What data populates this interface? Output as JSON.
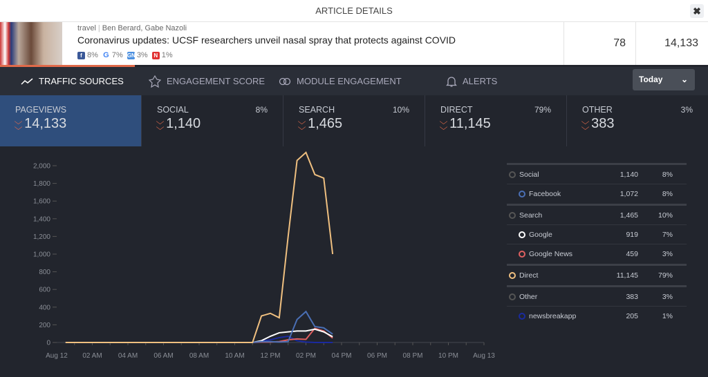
{
  "window": {
    "title": "ARTICLE DETAILS",
    "close_label": "✖"
  },
  "article": {
    "section": "travel",
    "authors": "Ben Berard, Gabe Nazoli",
    "headline": "Coronavirus updates: UCSF researchers unveil nasal spray that protects against COVID",
    "shares": [
      {
        "icon": "facebook-icon",
        "label": "8%",
        "color": "#3b5998",
        "glyph": "f"
      },
      {
        "icon": "google-icon",
        "label": "7%",
        "color": "#4285f4",
        "glyph": "G"
      },
      {
        "icon": "google-news-icon",
        "label": "3%",
        "color": "#4a8fe0",
        "glyph": "GN"
      },
      {
        "icon": "newsbreak-icon",
        "label": "1%",
        "color": "#e03030",
        "glyph": "N"
      }
    ],
    "col1": "78",
    "col2": "14,133",
    "progress_percent": 19
  },
  "tabs": [
    {
      "label": "TRAFFIC SOURCES",
      "icon": "trend-icon",
      "active": true
    },
    {
      "label": "ENGAGEMENT SCORE",
      "icon": "star-badge-icon"
    },
    {
      "label": "MODULE ENGAGEMENT",
      "icon": "rings-icon"
    },
    {
      "label": "ALERTS",
      "icon": "bell-icon"
    }
  ],
  "date_select": {
    "value": "Today"
  },
  "stats": [
    {
      "label": "PAGEVIEWS",
      "value": "14,133",
      "pct": ""
    },
    {
      "label": "SOCIAL",
      "value": "1,140",
      "pct": "8%"
    },
    {
      "label": "SEARCH",
      "value": "1,465",
      "pct": "10%"
    },
    {
      "label": "DIRECT",
      "value": "11,145",
      "pct": "79%"
    },
    {
      "label": "OTHER",
      "value": "383",
      "pct": "3%"
    }
  ],
  "legend": [
    {
      "group": true,
      "name": "Social",
      "count": "1,140",
      "pct": "8%",
      "color": "#555555"
    },
    {
      "name": "Facebook",
      "count": "1,072",
      "pct": "8%",
      "color": "#4a6fb5"
    },
    {
      "group": true,
      "name": "Search",
      "count": "1,465",
      "pct": "10%",
      "color": "#555555"
    },
    {
      "name": "Google",
      "count": "919",
      "pct": "7%",
      "color": "#ffffff"
    },
    {
      "name": "Google News",
      "count": "459",
      "pct": "3%",
      "color": "#e06060"
    },
    {
      "group": true,
      "name": "Direct",
      "count": "11,145",
      "pct": "79%",
      "color": "#f0c080"
    },
    {
      "group": true,
      "name": "Other",
      "count": "383",
      "pct": "3%",
      "color": "#555555"
    },
    {
      "name": "newsbreakapp",
      "count": "205",
      "pct": "1%",
      "color": "#1a2aa0"
    }
  ],
  "chart_data": {
    "type": "line",
    "x_unit": "hour of Aug 12",
    "x": [
      "11:00",
      "11:30",
      "12:00",
      "12:30",
      "13:00",
      "13:30",
      "14:00",
      "14:30",
      "15:00",
      "15:30"
    ],
    "x_ticks": [
      "Aug 12",
      "02 AM",
      "04 AM",
      "06 AM",
      "08 AM",
      "10 AM",
      "12 PM",
      "02 PM",
      "04 PM",
      "06 PM",
      "08 PM",
      "10 PM",
      "Aug 13"
    ],
    "y_ticks": [
      "0",
      "200",
      "400",
      "600",
      "800",
      "1,000",
      "1,200",
      "1,400",
      "1,600",
      "1,800",
      "2,000"
    ],
    "ylim": [
      0,
      2000
    ],
    "note_zero_before": "all series 0 from 00:30 to 11:00",
    "series": [
      {
        "name": "Direct",
        "color": "#f0c080",
        "values": [
          0,
          300,
          330,
          280,
          1200,
          2060,
          2150,
          1900,
          1860,
          1000
        ]
      },
      {
        "name": "Facebook",
        "color": "#4a6fb5",
        "values": [
          0,
          10,
          10,
          5,
          10,
          260,
          350,
          180,
          165,
          95
        ]
      },
      {
        "name": "Google",
        "color": "#ffffff",
        "values": [
          0,
          20,
          70,
          110,
          120,
          130,
          130,
          150,
          120,
          65
        ]
      },
      {
        "name": "Google News",
        "color": "#e06060",
        "values": [
          0,
          5,
          5,
          10,
          30,
          40,
          35,
          160,
          130,
          50
        ]
      },
      {
        "name": "newsbreakapp",
        "color": "#1a2aa0",
        "values": [
          0,
          15,
          30,
          55,
          70,
          20,
          5,
          0,
          0,
          0
        ]
      }
    ]
  }
}
